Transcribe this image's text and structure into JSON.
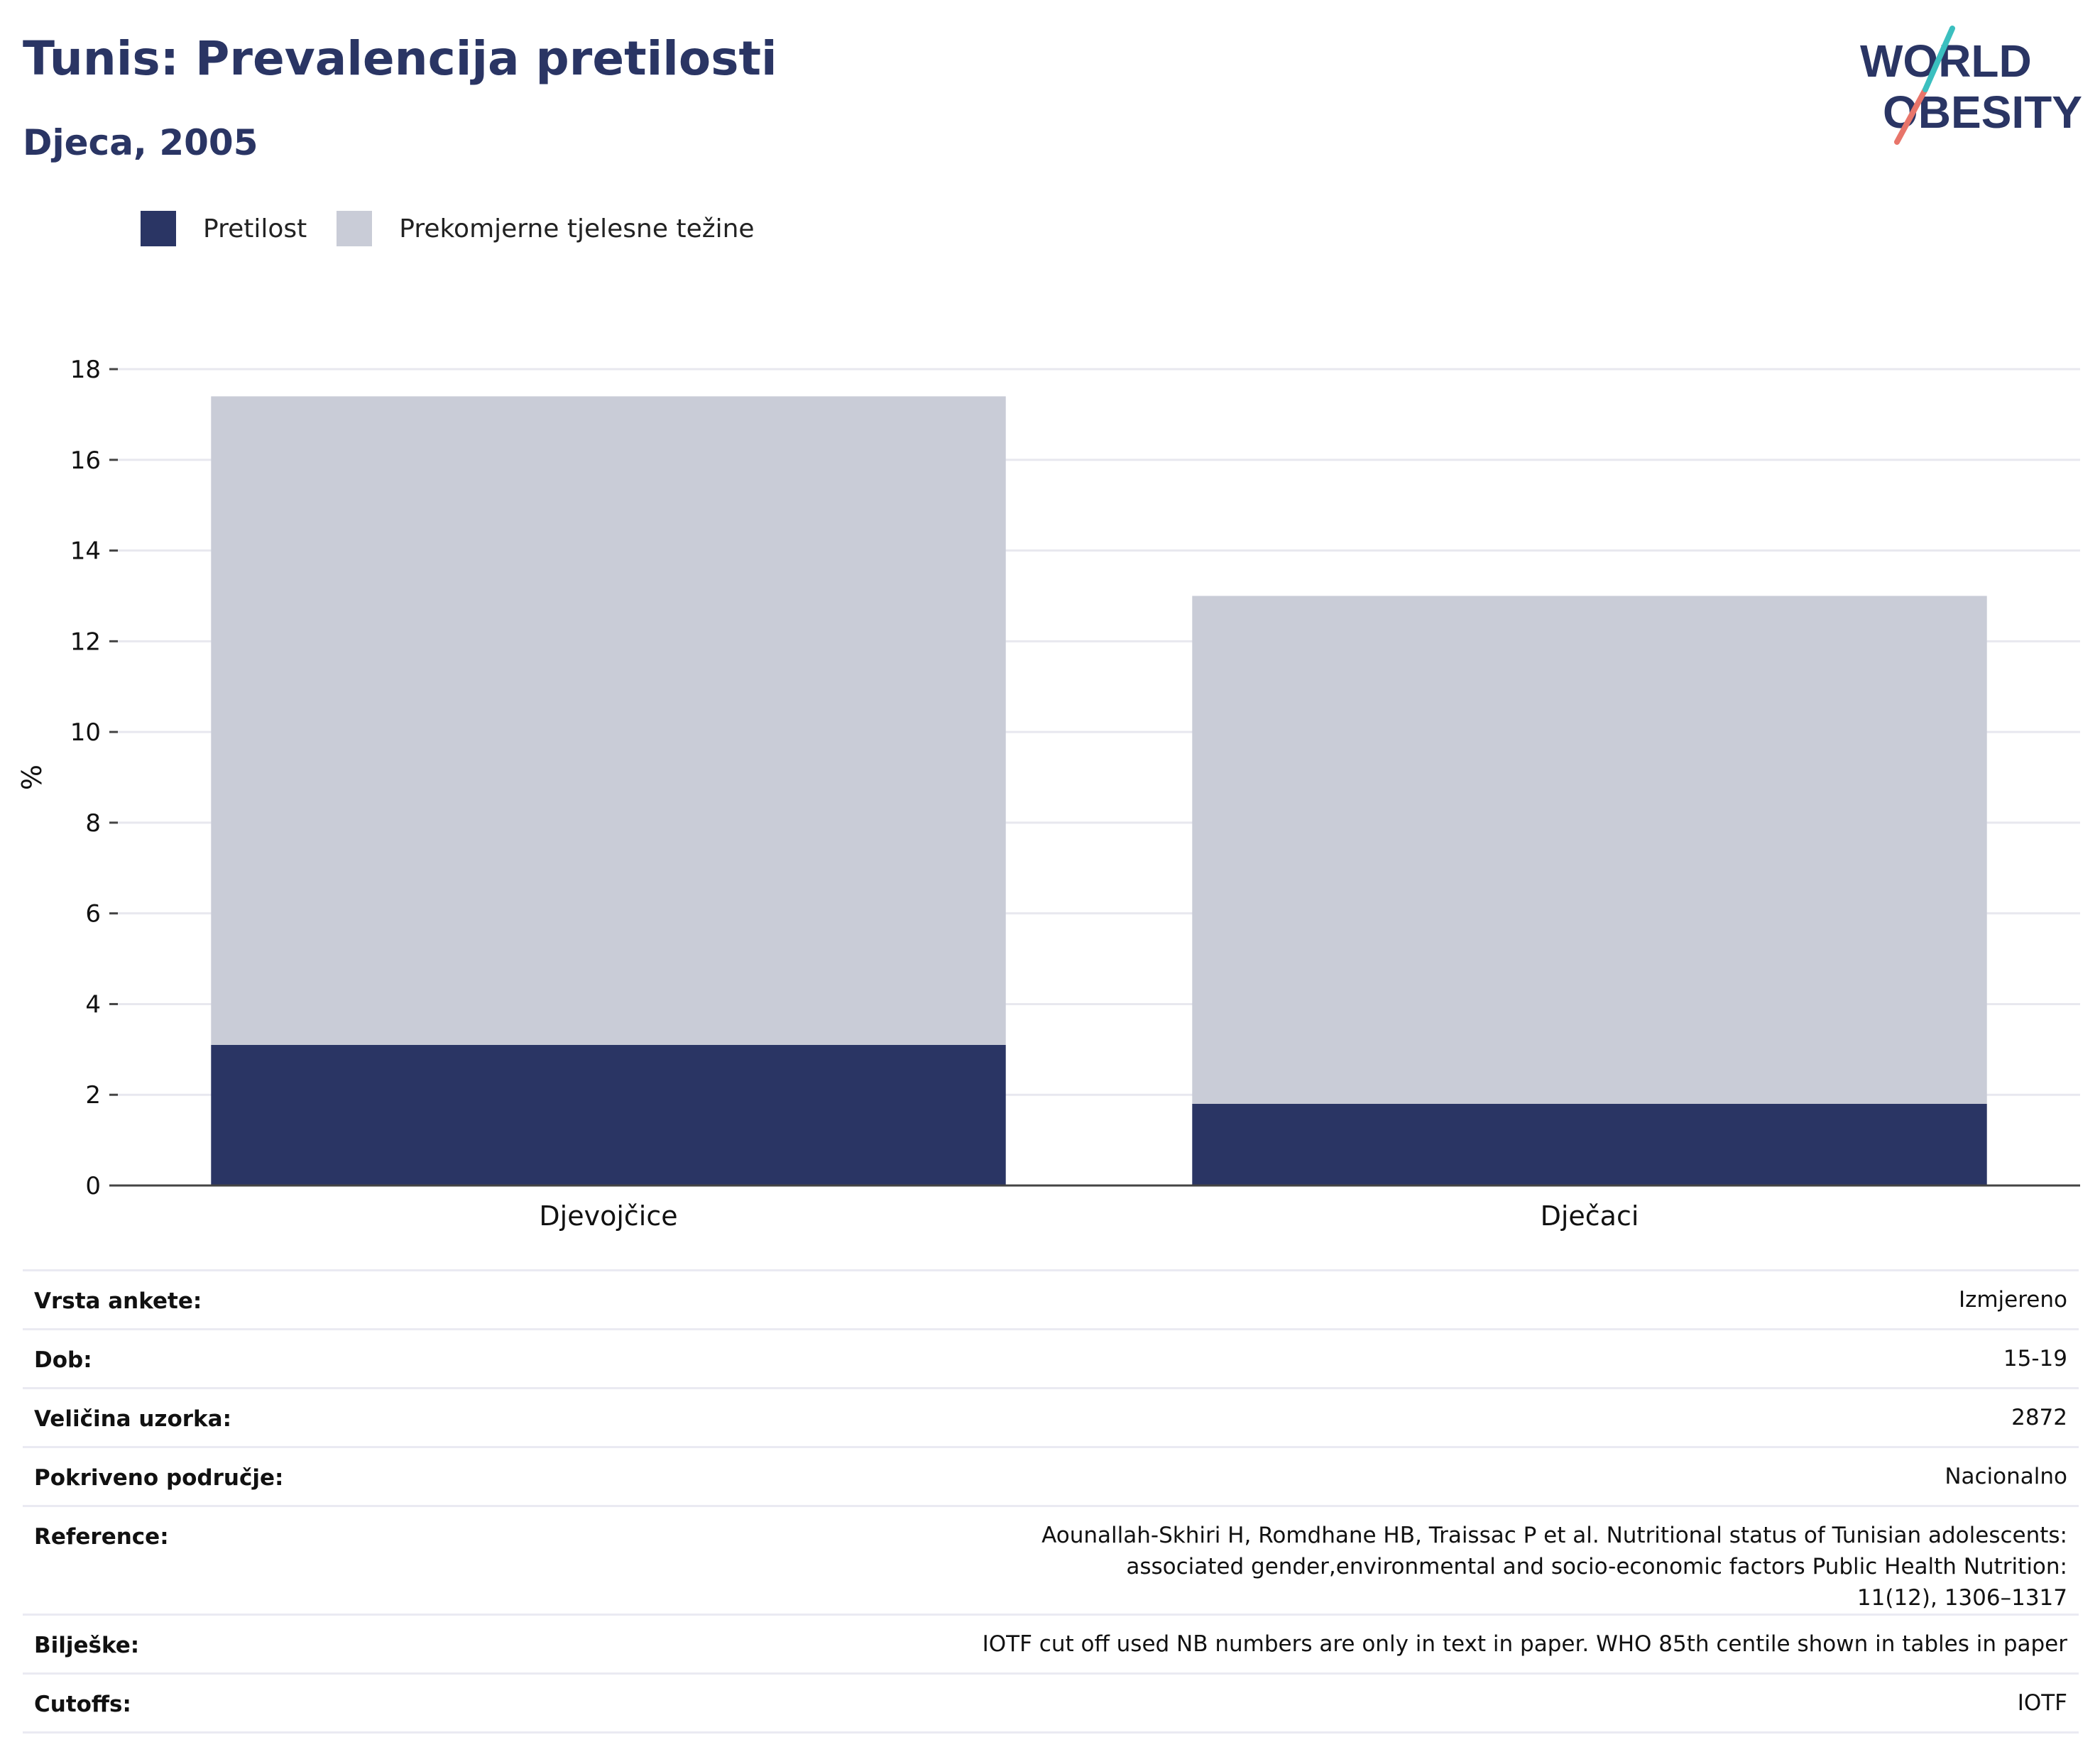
{
  "header": {
    "title": "Tunis: Prevalencija pretilosti",
    "subtitle": "Djeca, 2005",
    "logo_line1": "WORLD",
    "logo_line2": "OBESITY"
  },
  "legend": [
    {
      "label": "Pretilost",
      "color": "#2a3564"
    },
    {
      "label": "Prekomjerne tjelesne težine",
      "color": "#c9ccd7"
    }
  ],
  "chart_data": {
    "type": "bar",
    "stacked": true,
    "categories": [
      "Djevojčice",
      "Dječaci"
    ],
    "series": [
      {
        "name": "Pretilost",
        "values": [
          3.1,
          1.8
        ],
        "color": "#2a3564"
      },
      {
        "name": "Prekomjerne tjelesne težine",
        "values": [
          14.3,
          11.2
        ],
        "color": "#c9ccd7"
      }
    ],
    "ylabel": "%",
    "ylim": [
      0,
      18
    ],
    "yticks": [
      0,
      2,
      4,
      6,
      8,
      10,
      12,
      14,
      16,
      18
    ],
    "grid": true,
    "legend_position": "top-left"
  },
  "info": [
    {
      "key": "Vrsta ankete:",
      "value": "Izmjereno"
    },
    {
      "key": "Dob:",
      "value": "15-19"
    },
    {
      "key": "Veličina uzorka:",
      "value": "2872"
    },
    {
      "key": "Pokriveno područje:",
      "value": "Nacionalno"
    },
    {
      "key": "Reference:",
      "value": "Aounallah-Skhiri H, Romdhane HB, Traissac P et al. Nutritional status of Tunisian adolescents: associated gender,environmental and socio-economic factors Public Health Nutrition: 11(12), 1306–1317"
    },
    {
      "key": "Bilješke:",
      "value": "IOTF cut off used NB numbers are only in text in paper. WHO 85th centile shown in tables in paper"
    },
    {
      "key": "Cutoffs:",
      "value": "IOTF"
    }
  ]
}
